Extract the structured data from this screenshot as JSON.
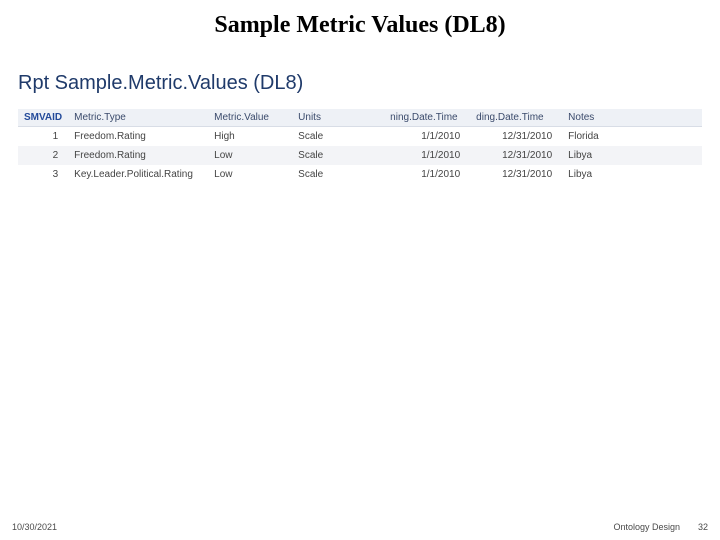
{
  "slide": {
    "title": "Sample Metric Values (DL8)"
  },
  "report": {
    "title": "Rpt Sample.Metric.Values (DL8)",
    "columns": [
      "SMVAID",
      "Metric.Type",
      "Metric.Value",
      "Units",
      "ning.Date.Time",
      "ding.Date.Time",
      "Notes"
    ],
    "rows": [
      {
        "id": "1",
        "type": "Freedom.Rating",
        "value": "High",
        "units": "Scale",
        "d1": "1/1/2010",
        "d2": "12/31/2010",
        "notes": "Florida"
      },
      {
        "id": "2",
        "type": "Freedom.Rating",
        "value": "Low",
        "units": "Scale",
        "d1": "1/1/2010",
        "d2": "12/31/2010",
        "notes": "Libya"
      },
      {
        "id": "3",
        "type": "Key.Leader.Political.Rating",
        "value": "Low",
        "units": "Scale",
        "d1": "1/1/2010",
        "d2": "12/31/2010",
        "notes": "Libya"
      }
    ]
  },
  "footer": {
    "date": "10/30/2021",
    "label": "Ontology Design",
    "page": "32"
  },
  "style": {
    "title_font": "Times New Roman",
    "title_size_pt": 24,
    "report_title_color": "#1f3a6a",
    "header_bg": "#eef1f6",
    "row_alt_bg": "#f3f4f7",
    "text_color": "#333333",
    "background": "#ffffff"
  }
}
